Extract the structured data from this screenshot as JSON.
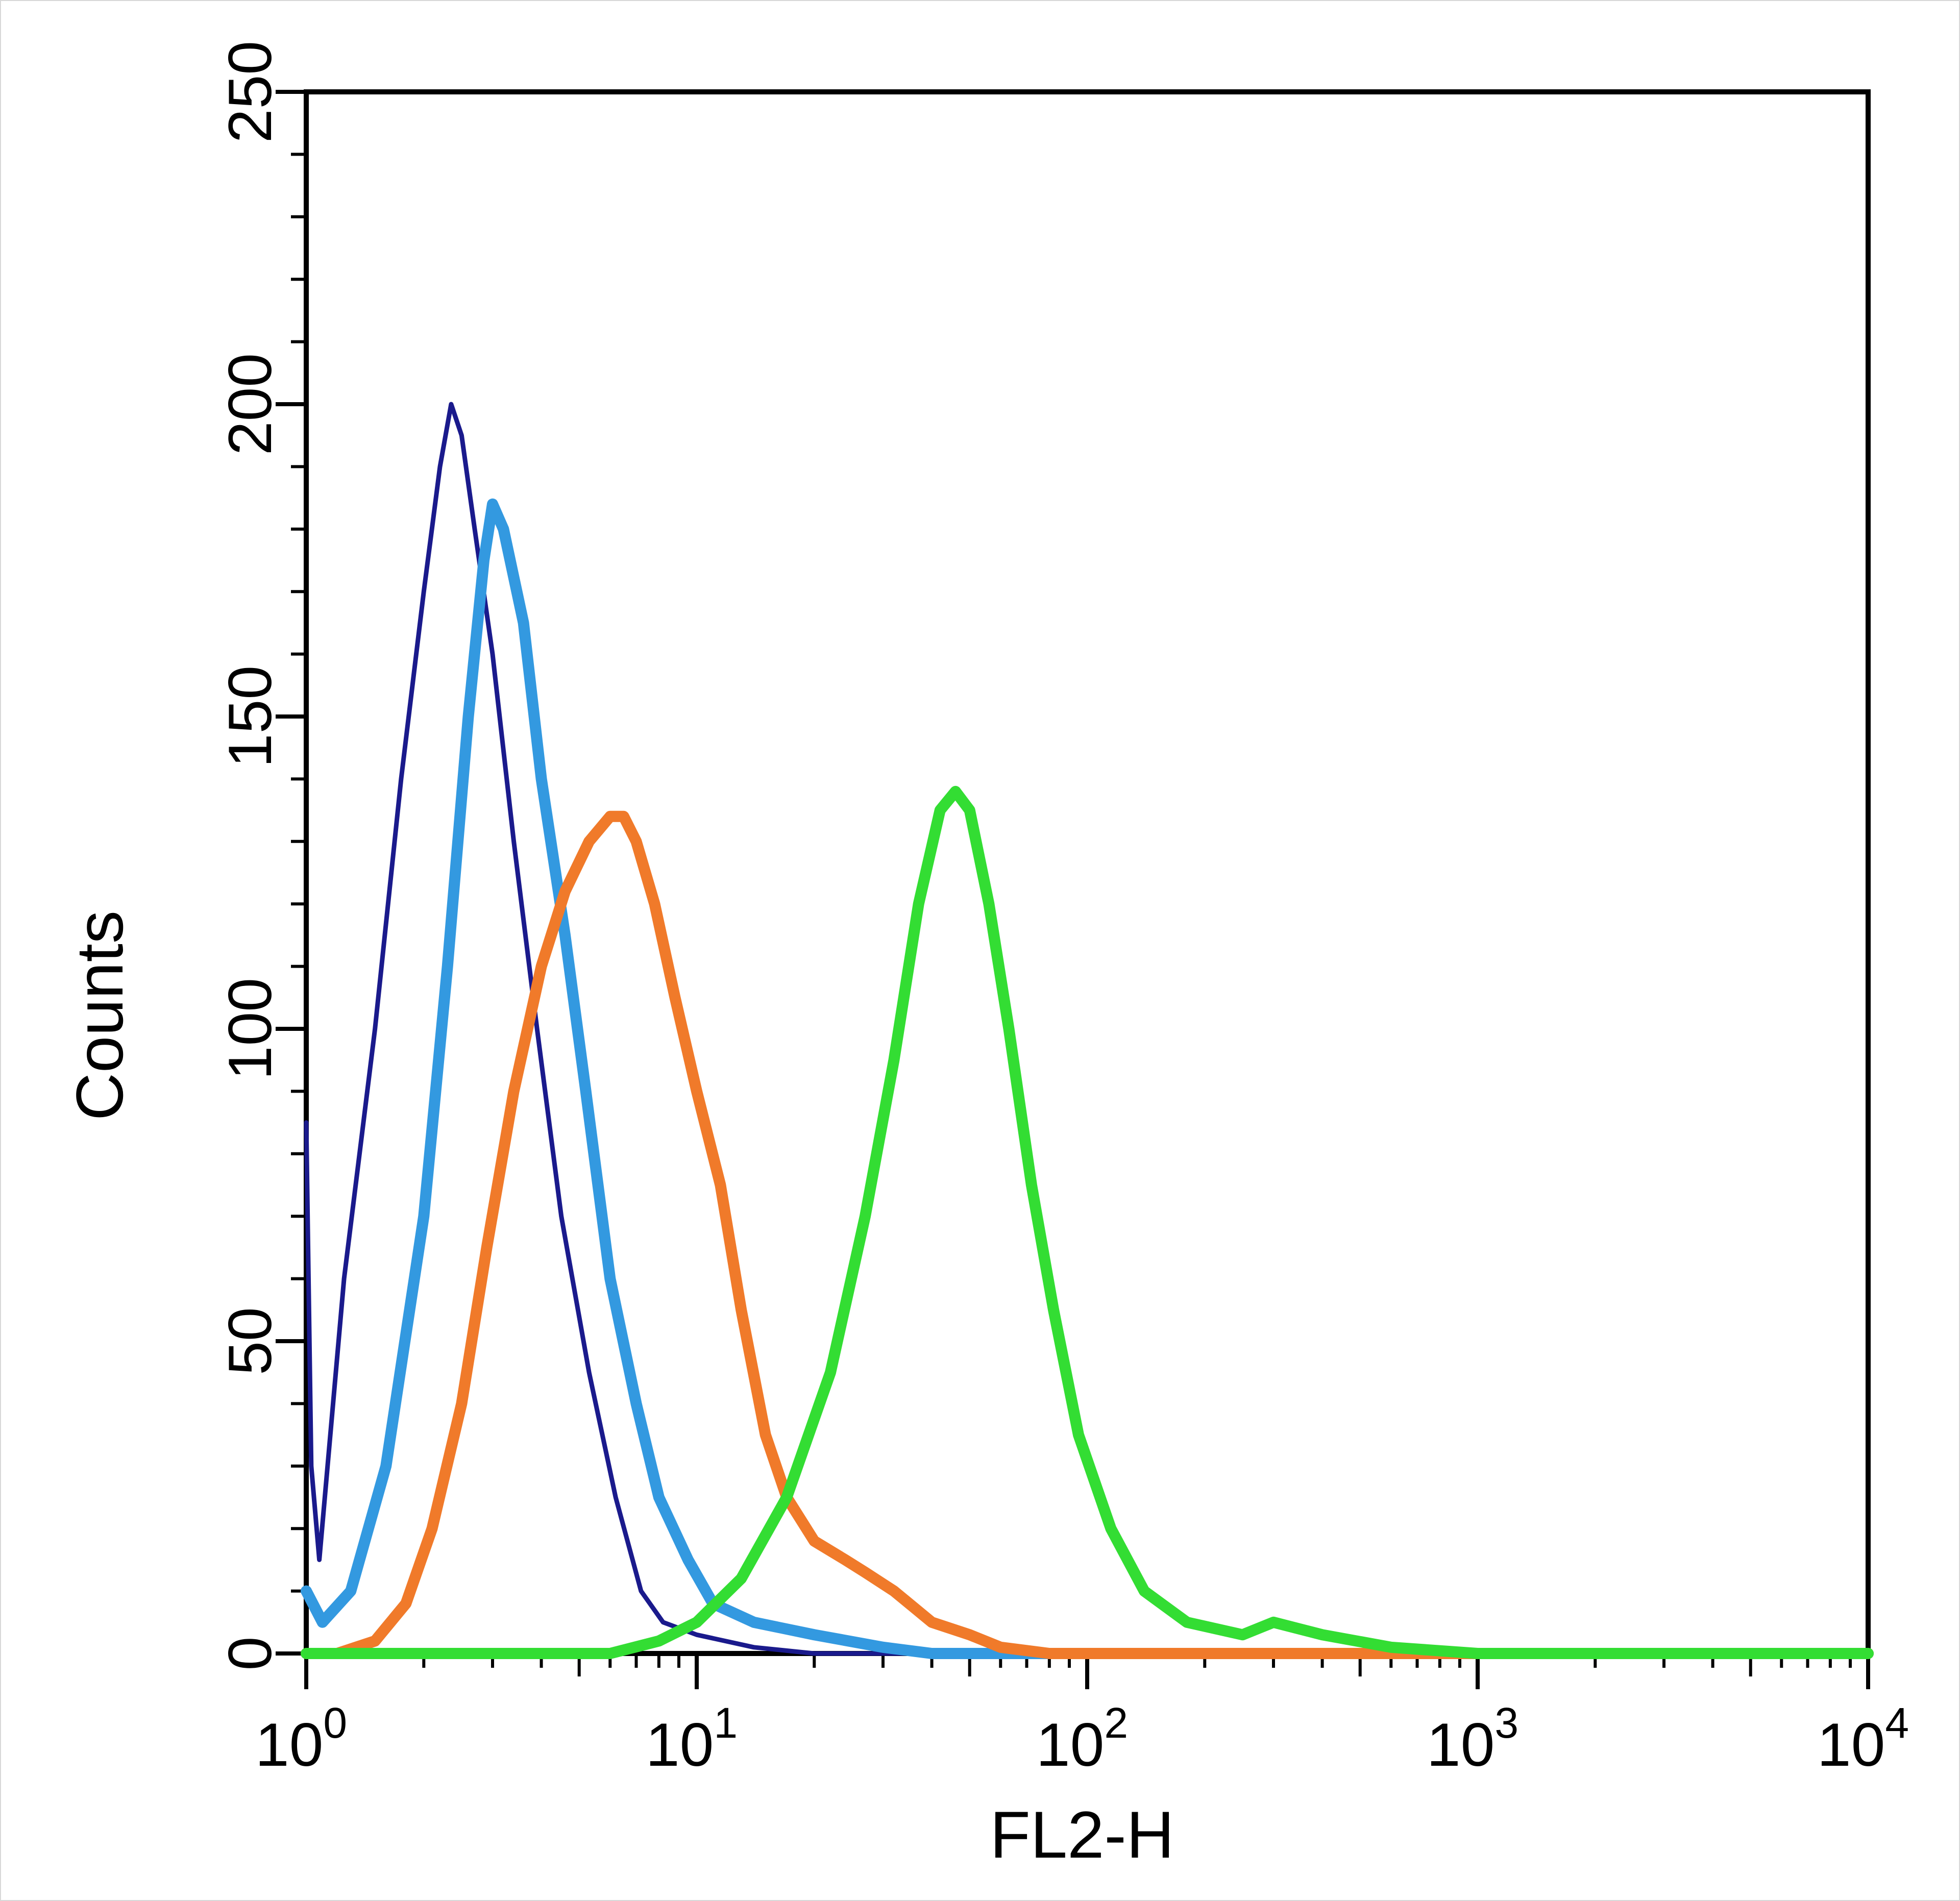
{
  "chart_data": {
    "type": "line",
    "title": "",
    "xlabel": "FL2-H",
    "ylabel": "Counts",
    "x_scale": "log",
    "xlim": [
      1,
      10000
    ],
    "ylim": [
      0,
      250
    ],
    "x_ticks": [
      {
        "value": 1,
        "base": "10",
        "exp": "0"
      },
      {
        "value": 10,
        "base": "10",
        "exp": "1"
      },
      {
        "value": 100,
        "base": "10",
        "exp": "2"
      },
      {
        "value": 1000,
        "base": "10",
        "exp": "3"
      },
      {
        "value": 10000,
        "base": "10",
        "exp": "4"
      }
    ],
    "y_ticks": [
      {
        "value": 0,
        "label": "0"
      },
      {
        "value": 50,
        "label": "50"
      },
      {
        "value": 100,
        "label": "100"
      },
      {
        "value": 150,
        "label": "150"
      },
      {
        "value": 200,
        "label": "200"
      },
      {
        "value": 250,
        "label": "250"
      }
    ],
    "grid": false,
    "legend": "none",
    "series": [
      {
        "color": "#1a1a8c",
        "line_width": "thin",
        "points": [
          [
            1.0,
            85
          ],
          [
            1.03,
            30
          ],
          [
            1.08,
            15
          ],
          [
            1.25,
            60
          ],
          [
            1.5,
            100
          ],
          [
            1.75,
            140
          ],
          [
            2.0,
            170
          ],
          [
            2.2,
            190
          ],
          [
            2.35,
            200
          ],
          [
            2.5,
            195
          ],
          [
            2.7,
            180
          ],
          [
            3.0,
            160
          ],
          [
            3.4,
            130
          ],
          [
            3.9,
            100
          ],
          [
            4.5,
            70
          ],
          [
            5.3,
            45
          ],
          [
            6.2,
            25
          ],
          [
            7.2,
            10
          ],
          [
            8.2,
            5
          ],
          [
            10,
            3
          ],
          [
            14,
            1
          ],
          [
            20,
            0
          ],
          [
            10000,
            0
          ]
        ]
      },
      {
        "color": "#3399e0",
        "line_width": "thick",
        "points": [
          [
            1.0,
            10
          ],
          [
            1.1,
            5
          ],
          [
            1.3,
            10
          ],
          [
            1.6,
            30
          ],
          [
            2.0,
            70
          ],
          [
            2.3,
            110
          ],
          [
            2.6,
            150
          ],
          [
            2.85,
            175
          ],
          [
            3.0,
            184
          ],
          [
            3.2,
            180
          ],
          [
            3.6,
            165
          ],
          [
            4.0,
            140
          ],
          [
            4.6,
            115
          ],
          [
            5.2,
            90
          ],
          [
            6.0,
            60
          ],
          [
            7.0,
            40
          ],
          [
            8.0,
            25
          ],
          [
            9.5,
            15
          ],
          [
            11,
            8
          ],
          [
            14,
            5
          ],
          [
            20,
            3
          ],
          [
            30,
            1
          ],
          [
            40,
            0
          ],
          [
            10000,
            0
          ]
        ]
      },
      {
        "color": "#f07a2a",
        "line_width": "thick",
        "points": [
          [
            1.0,
            0
          ],
          [
            1.2,
            0
          ],
          [
            1.5,
            2
          ],
          [
            1.8,
            8
          ],
          [
            2.1,
            20
          ],
          [
            2.5,
            40
          ],
          [
            2.9,
            65
          ],
          [
            3.4,
            90
          ],
          [
            4.0,
            110
          ],
          [
            4.6,
            122
          ],
          [
            5.3,
            130
          ],
          [
            6.0,
            134
          ],
          [
            6.5,
            134
          ],
          [
            7.0,
            130
          ],
          [
            7.8,
            120
          ],
          [
            8.8,
            105
          ],
          [
            10,
            90
          ],
          [
            11.5,
            75
          ],
          [
            13,
            55
          ],
          [
            15,
            35
          ],
          [
            17,
            25
          ],
          [
            20,
            18
          ],
          [
            24,
            15
          ],
          [
            27,
            13
          ],
          [
            32,
            10
          ],
          [
            40,
            5
          ],
          [
            50,
            3
          ],
          [
            60,
            1
          ],
          [
            80,
            0
          ],
          [
            10000,
            0
          ]
        ]
      },
      {
        "color": "#33dd33",
        "line_width": "thick",
        "points": [
          [
            1.0,
            0
          ],
          [
            6,
            0
          ],
          [
            8,
            2
          ],
          [
            10,
            5
          ],
          [
            13,
            12
          ],
          [
            17,
            25
          ],
          [
            22,
            45
          ],
          [
            27,
            70
          ],
          [
            32,
            95
          ],
          [
            37,
            120
          ],
          [
            42,
            135
          ],
          [
            46,
            138
          ],
          [
            50,
            135
          ],
          [
            56,
            120
          ],
          [
            63,
            100
          ],
          [
            72,
            75
          ],
          [
            82,
            55
          ],
          [
            95,
            35
          ],
          [
            115,
            20
          ],
          [
            140,
            10
          ],
          [
            180,
            5
          ],
          [
            250,
            3
          ],
          [
            300,
            5
          ],
          [
            400,
            3
          ],
          [
            600,
            1
          ],
          [
            1000,
            0
          ],
          [
            10000,
            0
          ]
        ]
      }
    ]
  }
}
